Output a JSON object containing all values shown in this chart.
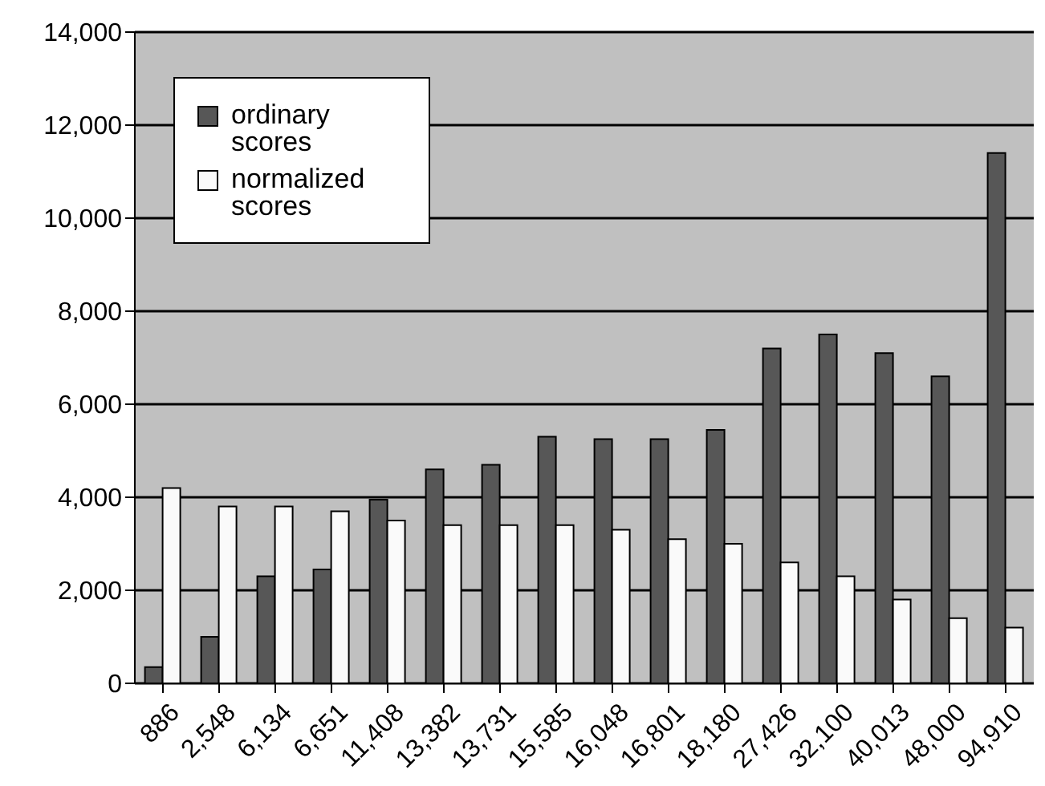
{
  "chart_data": {
    "type": "bar",
    "categories": [
      "886",
      "2,548",
      "6,134",
      "6,651",
      "11,408",
      "13,382",
      "13,731",
      "15,585",
      "16,048",
      "16,801",
      "18,180",
      "27,426",
      "32,100",
      "40,013",
      "48,000",
      "94,910"
    ],
    "series": [
      {
        "name": "ordinary scores",
        "color": "#575757",
        "values": [
          350,
          1000,
          2300,
          2450,
          3950,
          4600,
          4700,
          5300,
          5250,
          5250,
          5450,
          7200,
          7500,
          7100,
          6600,
          11400
        ]
      },
      {
        "name": "normalized scores",
        "color": "#fafafa",
        "values": [
          4200,
          3800,
          3800,
          3700,
          3500,
          3400,
          3400,
          3400,
          3300,
          3100,
          3000,
          2600,
          2300,
          1800,
          1400,
          1200
        ]
      }
    ],
    "ylim": [
      0,
      14000
    ],
    "yticks": [
      {
        "value": 0,
        "label": "0"
      },
      {
        "value": 2000,
        "label": "2,000"
      },
      {
        "value": 4000,
        "label": "4,000"
      },
      {
        "value": 6000,
        "label": "6,000"
      },
      {
        "value": 8000,
        "label": "8,000"
      },
      {
        "value": 10000,
        "label": "10,000"
      },
      {
        "value": 12000,
        "label": "12,000"
      },
      {
        "value": 14000,
        "label": "14,000"
      }
    ],
    "grid": "y",
    "legend": "top left"
  }
}
